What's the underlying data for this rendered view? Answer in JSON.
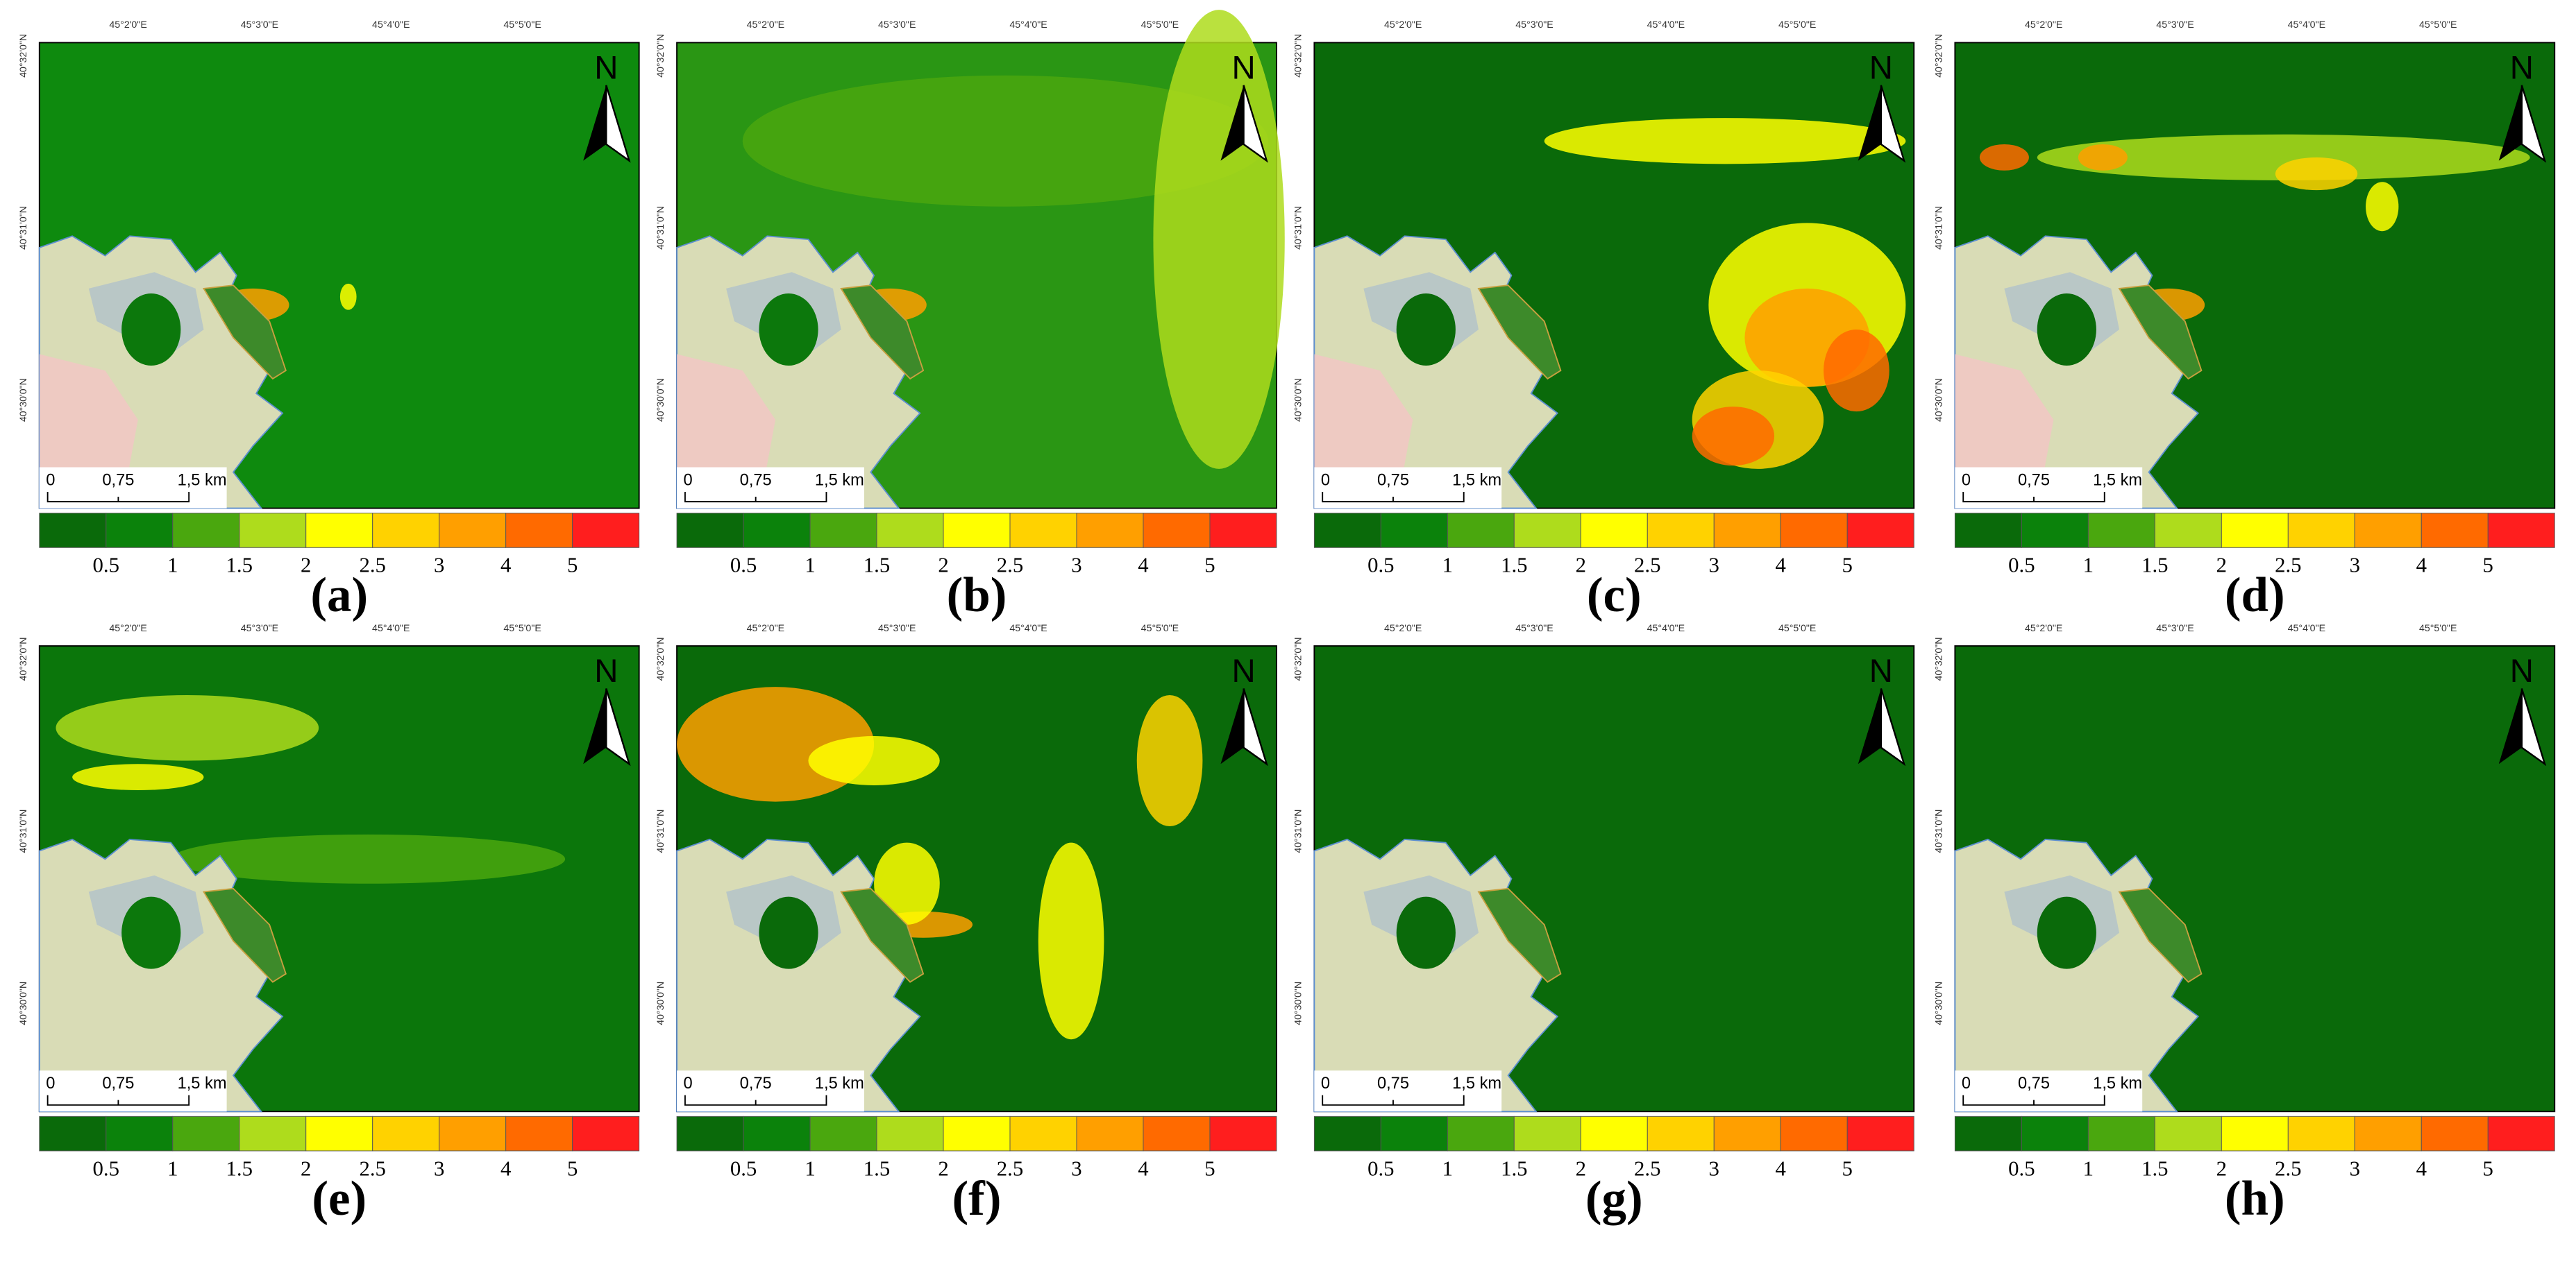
{
  "panels": [
    {
      "label": "(a)"
    },
    {
      "label": "(b)"
    },
    {
      "label": "(c)"
    },
    {
      "label": "(d)"
    },
    {
      "label": "(e)"
    },
    {
      "label": "(f)"
    },
    {
      "label": "(g)"
    },
    {
      "label": "(h)"
    }
  ],
  "lon_labels": [
    "45°2'0\"E",
    "45°3'0\"E",
    "45°4'0\"E",
    "45°5'0\"E"
  ],
  "lat_labels": [
    "40°32'0\"N",
    "40°31'0\"N",
    "40°30'0\"N"
  ],
  "north": "N",
  "scale_bar": {
    "labels": [
      "0",
      "0,75",
      "1,5 km"
    ]
  },
  "legend": {
    "colors": [
      "#0a6a0a",
      "#0b820b",
      "#4aa70e",
      "#aedc1c",
      "#ffff00",
      "#ffd200",
      "#ff9f00",
      "#ff6a00",
      "#ff1e1e"
    ],
    "ticks": [
      0.5,
      1,
      1.5,
      2,
      2.5,
      3,
      4,
      5
    ]
  }
}
